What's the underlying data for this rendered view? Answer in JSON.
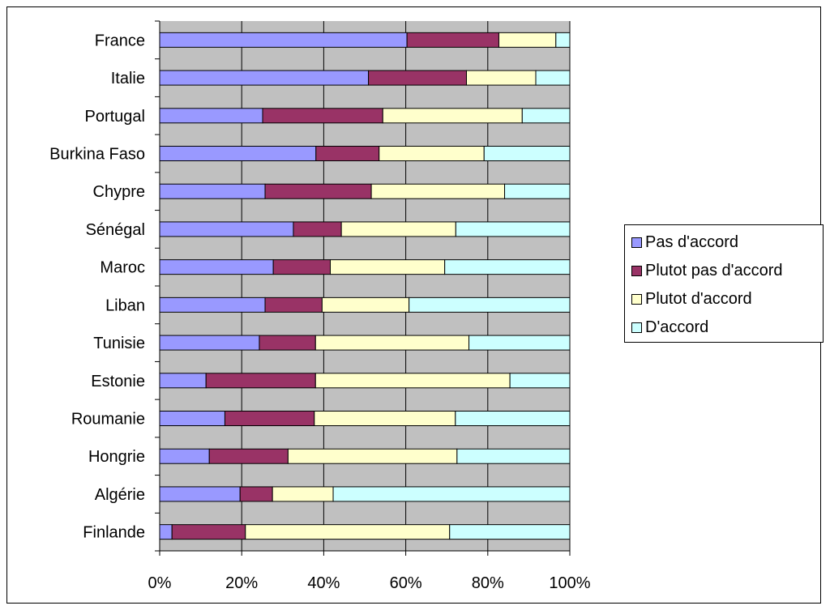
{
  "chart_data": {
    "type": "bar",
    "orientation": "horizontal",
    "stacked": "percent",
    "categories": [
      "France",
      "Italie",
      "Portugal",
      "Burkina Faso",
      "Chypre",
      "Sénégal",
      "Maroc",
      "Liban",
      "Tunisie",
      "Estonie",
      "Roumanie",
      "Hongrie",
      "Algérie",
      "Finlande"
    ],
    "series": [
      {
        "name": "Pas d'accord",
        "color": "#9999ff",
        "values": [
          60.3,
          50.9,
          25.1,
          38.1,
          25.7,
          32.6,
          27.7,
          25.7,
          24.3,
          11.3,
          15.9,
          12.1,
          19.6,
          3.0
        ]
      },
      {
        "name": "Plutot pas d'accord",
        "color": "#993366",
        "values": [
          22.4,
          23.9,
          29.3,
          15.4,
          25.9,
          11.7,
          13.9,
          13.9,
          13.7,
          26.7,
          21.8,
          19.2,
          7.9,
          17.9
        ]
      },
      {
        "name": "Plutot d'accord",
        "color": "#ffffcc",
        "values": [
          13.9,
          16.9,
          34.0,
          25.6,
          32.5,
          27.9,
          27.9,
          21.2,
          37.4,
          47.4,
          34.4,
          41.2,
          14.8,
          49.8
        ]
      },
      {
        "name": "D'accord",
        "color": "#ccffff",
        "values": [
          3.4,
          8.3,
          11.6,
          20.9,
          15.9,
          27.8,
          30.5,
          39.2,
          24.6,
          14.6,
          27.9,
          27.5,
          57.7,
          29.3
        ]
      }
    ],
    "xticks": [
      "0%",
      "20%",
      "40%",
      "60%",
      "80%",
      "100%"
    ],
    "xlim": [
      0,
      100
    ],
    "grid": true,
    "legend_position": "right",
    "colors": {
      "plot_background": "#c0c0c0",
      "gridline": "#000000"
    }
  }
}
